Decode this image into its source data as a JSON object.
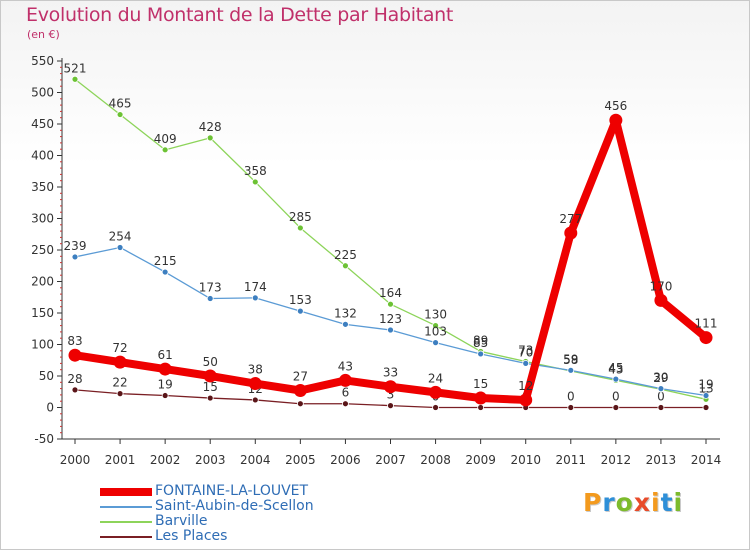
{
  "header": {
    "title": "Evolution du Montant de la Dette par Habitant",
    "unit": "(en €)"
  },
  "logo": {
    "letters": [
      "P",
      "r",
      "o",
      "x",
      "i",
      "t",
      "i"
    ],
    "colors": [
      "#f39a1e",
      "#2e8fd8",
      "#7dbb2c",
      "#e84b2a",
      "#f39a1e",
      "#2e8fd8",
      "#7dbb2c"
    ]
  },
  "chart_data": {
    "type": "line",
    "title": "Evolution du Montant de la Dette par Habitant",
    "ylabel": "(en €)",
    "xlabel": "",
    "ylim": [
      -50,
      550
    ],
    "ytick_step": 50,
    "grid": false,
    "legend_position": "bottom-left",
    "categories": [
      "2000",
      "2001",
      "2002",
      "2003",
      "2004",
      "2005",
      "2006",
      "2007",
      "2008",
      "2009",
      "2010",
      "2011",
      "2012",
      "2013",
      "2014"
    ],
    "series": [
      {
        "name": "Les Places",
        "color": "#7a1f24",
        "point_color": "#5a1518",
        "values": [
          28,
          22,
          19,
          15,
          12,
          6,
          6,
          3,
          0,
          0,
          0,
          0,
          0,
          0,
          0
        ],
        "labels": [
          "28",
          "22",
          "19",
          "15",
          "12",
          "6",
          "6",
          "3",
          "0",
          "0",
          "0",
          "0",
          "0",
          "0",
          "0"
        ]
      },
      {
        "name": "Barville",
        "color": "#8dd45a",
        "point_color": "#6cc234",
        "values": [
          521,
          465,
          409,
          428,
          358,
          285,
          225,
          164,
          130,
          89,
          73,
          58,
          43,
          29,
          13
        ],
        "labels": [
          "521",
          "465",
          "409",
          "428",
          "358",
          "285",
          "225",
          "164",
          "130",
          "89",
          "73",
          "58",
          "43",
          "29",
          "13"
        ]
      },
      {
        "name": "Saint-Aubin-de-Scellon",
        "color": "#5b9bd5",
        "point_color": "#3d7fc0",
        "values": [
          239,
          254,
          215,
          173,
          174,
          153,
          132,
          123,
          103,
          85,
          70,
          59,
          45,
          30,
          19
        ],
        "labels": [
          "239",
          "254",
          "215",
          "173",
          "174",
          "153",
          "132",
          "123",
          "103",
          "85",
          "70",
          "59",
          "45",
          "30",
          "19"
        ]
      },
      {
        "name": "FONTAINE-LA-LOUVET",
        "color": "#ee0000",
        "point_color": "#ee0000",
        "values": [
          83,
          72,
          61,
          50,
          38,
          27,
          43,
          33,
          24,
          15,
          12,
          277,
          456,
          170,
          111
        ],
        "labels": [
          "83",
          "72",
          "61",
          "50",
          "38",
          "27",
          "43",
          "33",
          "24",
          "15",
          "12",
          "277",
          "456",
          "170",
          "111"
        ]
      }
    ],
    "legend": [
      {
        "name": "FONTAINE-LA-LOUVET",
        "color": "#ee0000"
      },
      {
        "name": "Saint-Aubin-de-Scellon",
        "color": "#5b9bd5"
      },
      {
        "name": "Barville",
        "color": "#8dd45a"
      },
      {
        "name": "Les Places",
        "color": "#7a1f24"
      }
    ]
  }
}
